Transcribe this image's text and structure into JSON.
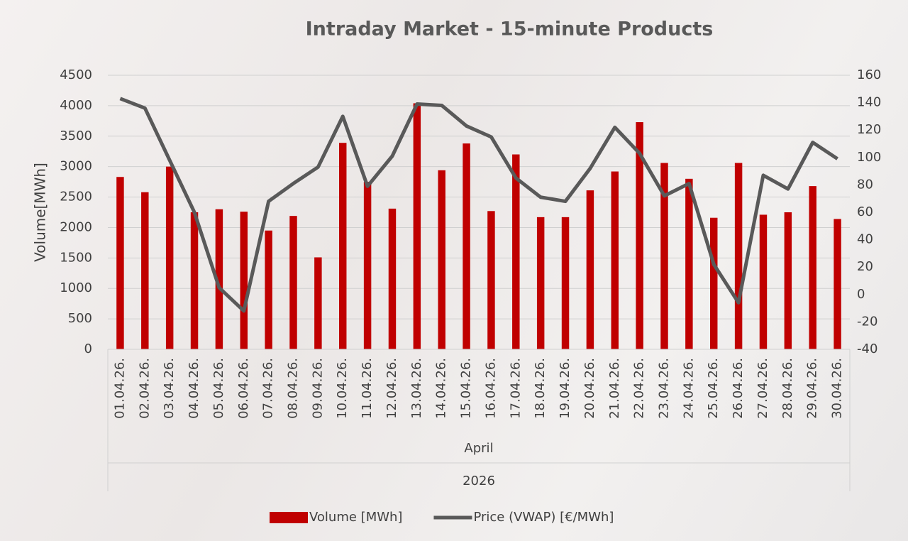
{
  "chart_data": {
    "type": "bar_line",
    "title": "Intraday Market - 15-minute Products",
    "y_label": "Volume[MWh]",
    "x_group_labels": [
      "April",
      "2026"
    ],
    "categories": [
      "01.04.26.",
      "02.04.26.",
      "03.04.26.",
      "04.04.26.",
      "05.04.26.",
      "06.04.26.",
      "07.04.26.",
      "08.04.26.",
      "09.04.26.",
      "10.04.26.",
      "11.04.26.",
      "12.04.26.",
      "13.04.26.",
      "14.04.26.",
      "15.04.26.",
      "16.04.26.",
      "17.04.26.",
      "18.04.26.",
      "19.04.26.",
      "20.04.26.",
      "21.04.26.",
      "22.04.26.",
      "23.04.26.",
      "24.04.26.",
      "25.04.26.",
      "26.04.26.",
      "27.04.26.",
      "28.04.26.",
      "29.04.26.",
      "30.04.26."
    ],
    "series": [
      {
        "name": "Volume [MWh]",
        "type": "bar",
        "color": "#c00000",
        "values": [
          2830,
          2580,
          3000,
          2250,
          2300,
          2260,
          1950,
          2190,
          1510,
          3390,
          2750,
          2310,
          4040,
          2940,
          3380,
          2270,
          3200,
          2170,
          2170,
          2610,
          2920,
          3730,
          3060,
          2800,
          2160,
          3060,
          2210,
          2250,
          2680,
          2140
        ]
      },
      {
        "name": "Price (VWAP) [€/MWh]",
        "type": "line",
        "color": "#595959",
        "axis": "y2",
        "values": [
          143,
          136,
          98,
          60,
          5,
          -12,
          68,
          81,
          93,
          130,
          79,
          101,
          139,
          138,
          123,
          115,
          85,
          71,
          68,
          92,
          122,
          103,
          72,
          81,
          22,
          -6,
          87,
          77,
          111,
          99
        ]
      }
    ],
    "ylim": [
      0,
      4500
    ],
    "yticks": [
      0,
      500,
      1000,
      1500,
      2000,
      2500,
      3000,
      3500,
      4000,
      4500
    ],
    "y2lim": [
      -40,
      160
    ],
    "y2ticks": [
      -40,
      -20,
      0,
      20,
      40,
      60,
      80,
      100,
      120,
      140,
      160
    ],
    "grid": true,
    "legend": "bottom"
  }
}
